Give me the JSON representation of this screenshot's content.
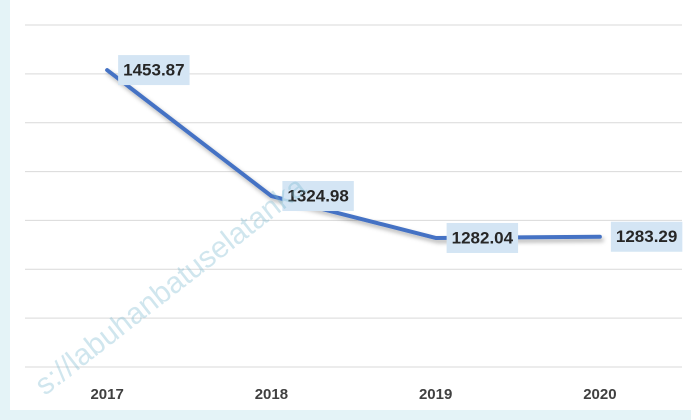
{
  "chart_data": {
    "type": "line",
    "categories": [
      "2017",
      "2018",
      "2019",
      "2020"
    ],
    "series": [
      {
        "name": "",
        "color": "#4472c4",
        "values": [
          1453.87,
          1324.98,
          1282.04,
          1283.29
        ]
      }
    ],
    "ylim": [
      1150,
      1500
    ],
    "yticks": [
      1150,
      1200,
      1250,
      1300,
      1350,
      1400,
      1450,
      1500
    ],
    "grid": true,
    "watermark": "s://labuhanbatuselatanka"
  }
}
